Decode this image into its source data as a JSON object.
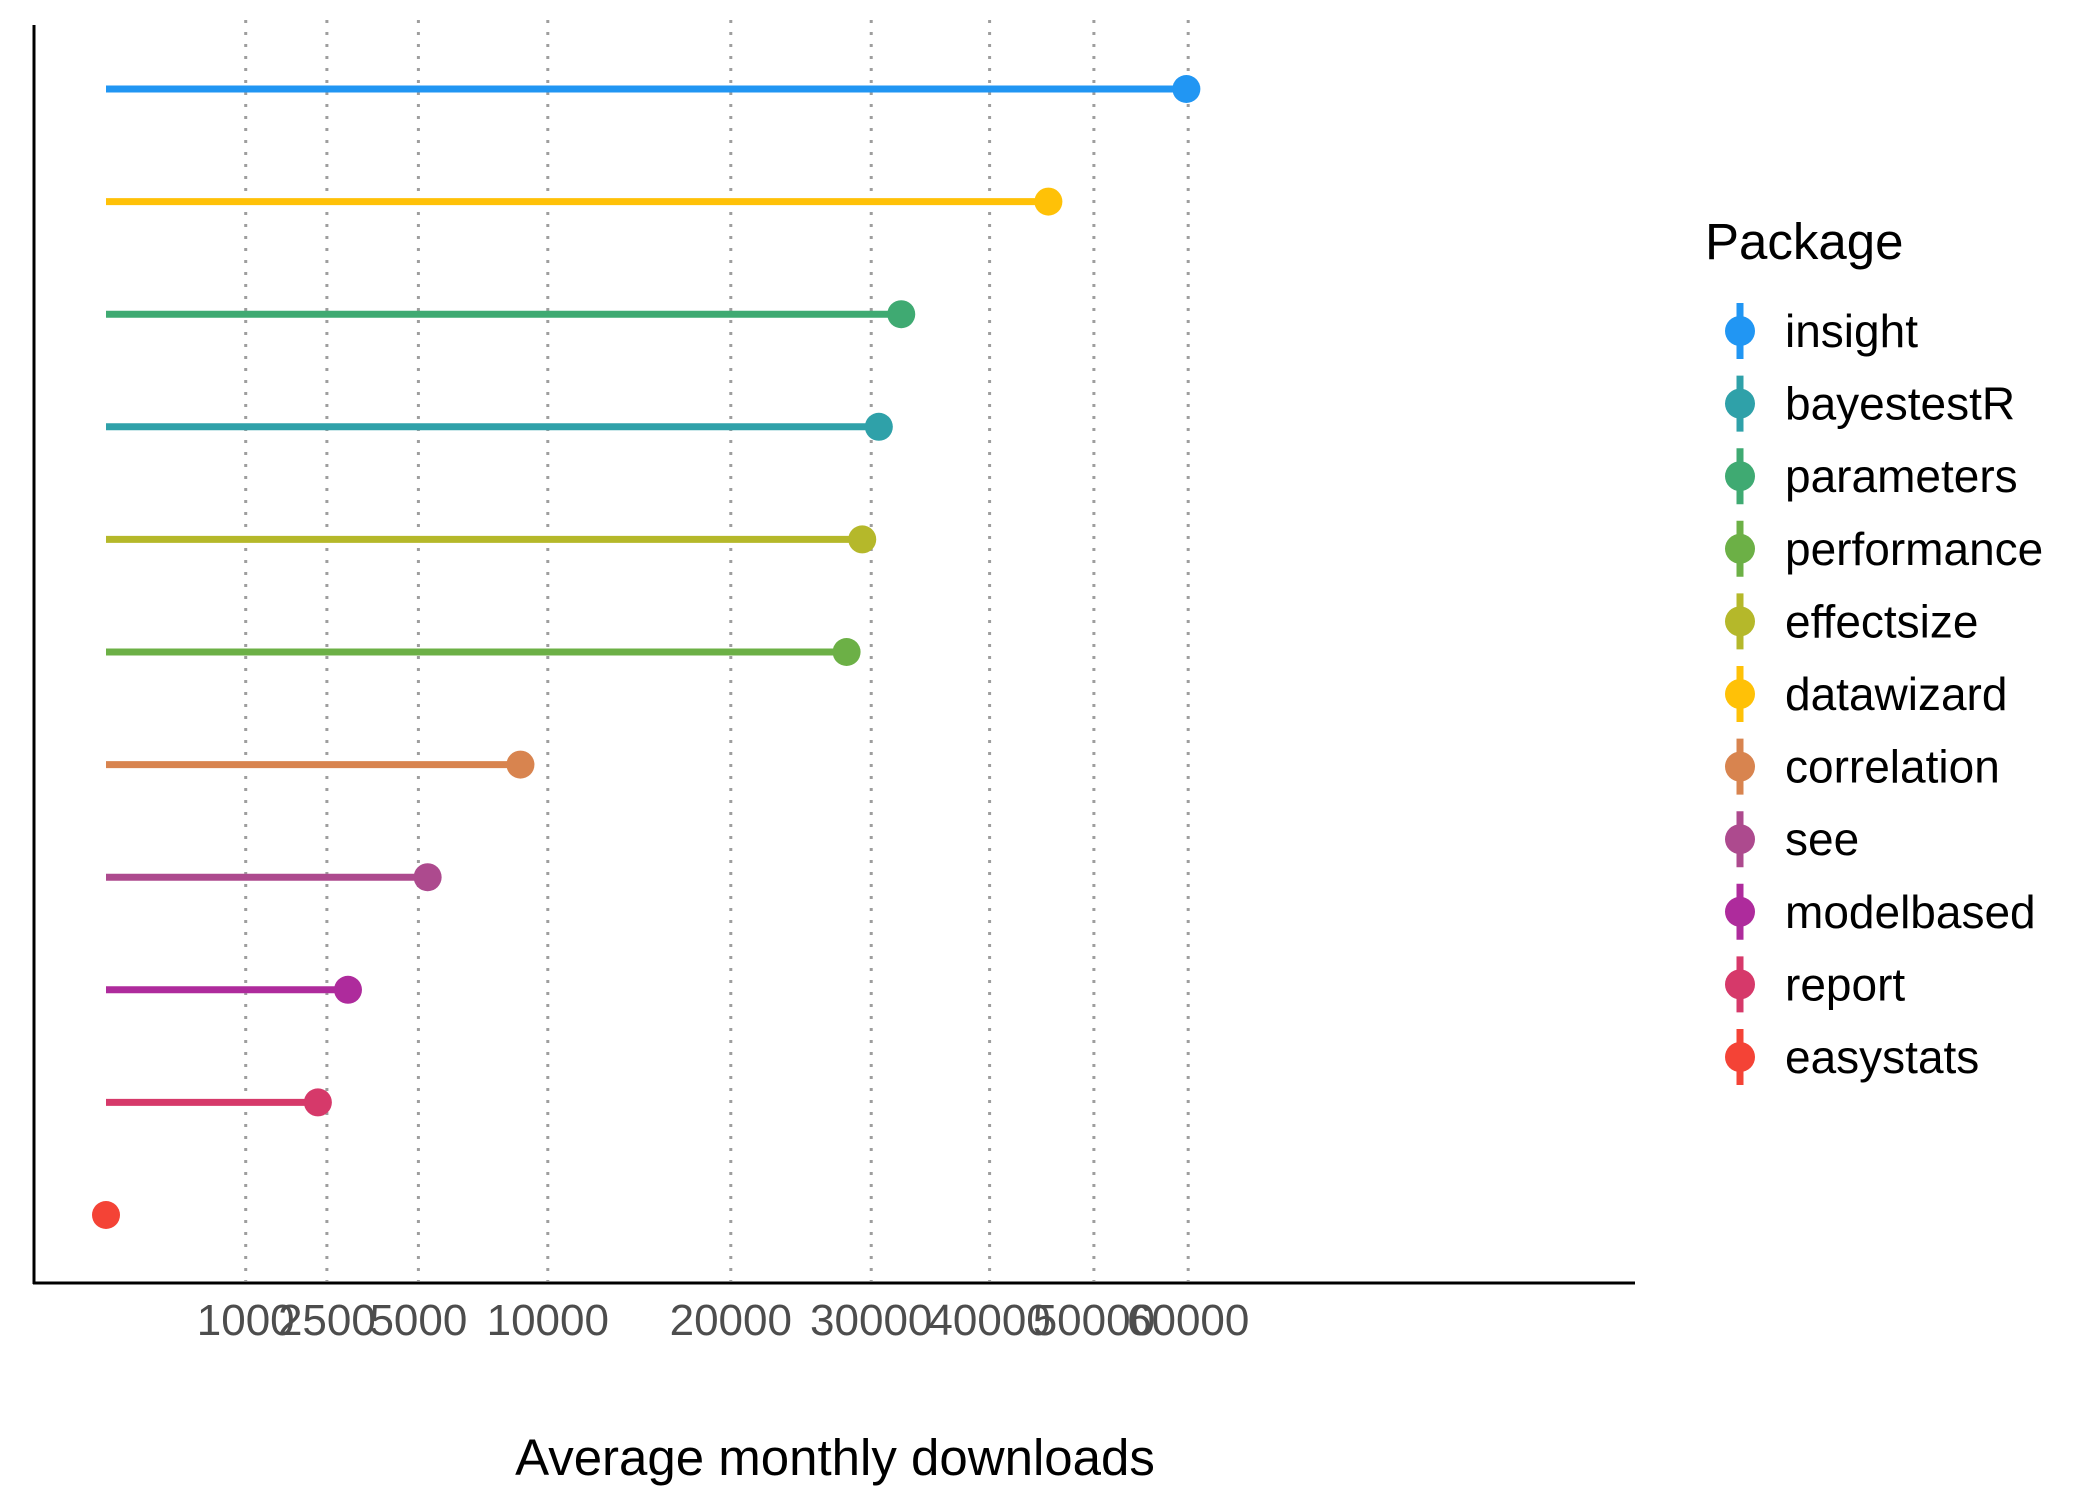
{
  "chart_data": {
    "type": "lollipop",
    "xlabel": "Average monthly downloads",
    "ylabel": "",
    "x_ticks": [
      1000,
      2500,
      5000,
      10000,
      20000,
      30000,
      40000,
      50000,
      60000
    ],
    "x_tick_labels": [
      "1000",
      "2500",
      "5000",
      "10000",
      "20000",
      "30000",
      "40000",
      "50000",
      "60000"
    ],
    "grid": "vertical-dotted",
    "legend": {
      "title": "Package",
      "placement": "right",
      "entries": [
        {
          "name": "insight",
          "color": "#2196F3"
        },
        {
          "name": "bayestestR",
          "color": "#2FA1A9"
        },
        {
          "name": "parameters",
          "color": "#3FAA72"
        },
        {
          "name": "performance",
          "color": "#6CB046"
        },
        {
          "name": "effectsize",
          "color": "#B5B82A"
        },
        {
          "name": "datawizard",
          "color": "#FFC107"
        },
        {
          "name": "correlation",
          "color": "#D8844F"
        },
        {
          "name": "see",
          "color": "#AD4A8E"
        },
        {
          "name": "modelbased",
          "color": "#AE2B9C"
        },
        {
          "name": "report",
          "color": "#D6396A"
        },
        {
          "name": "easystats",
          "color": "#F44336"
        }
      ]
    },
    "series": [
      {
        "name": "insight",
        "value": 59800,
        "color": "#2196F3"
      },
      {
        "name": "datawizard",
        "value": 45500,
        "color": "#FFC107"
      },
      {
        "name": "parameters",
        "value": 32400,
        "color": "#3FAA72"
      },
      {
        "name": "bayestestR",
        "value": 30600,
        "color": "#2FA1A9"
      },
      {
        "name": "effectsize",
        "value": 29300,
        "color": "#B5B82A"
      },
      {
        "name": "performance",
        "value": 28100,
        "color": "#6CB046"
      },
      {
        "name": "correlation",
        "value": 8800,
        "color": "#D8844F"
      },
      {
        "name": "see",
        "value": 5300,
        "color": "#AD4A8E"
      },
      {
        "name": "modelbased",
        "value": 3000,
        "color": "#AE2B9C"
      },
      {
        "name": "report",
        "value": 2300,
        "color": "#D6396A"
      },
      {
        "name": "easystats",
        "value": 0,
        "color": "#F44336"
      }
    ]
  }
}
